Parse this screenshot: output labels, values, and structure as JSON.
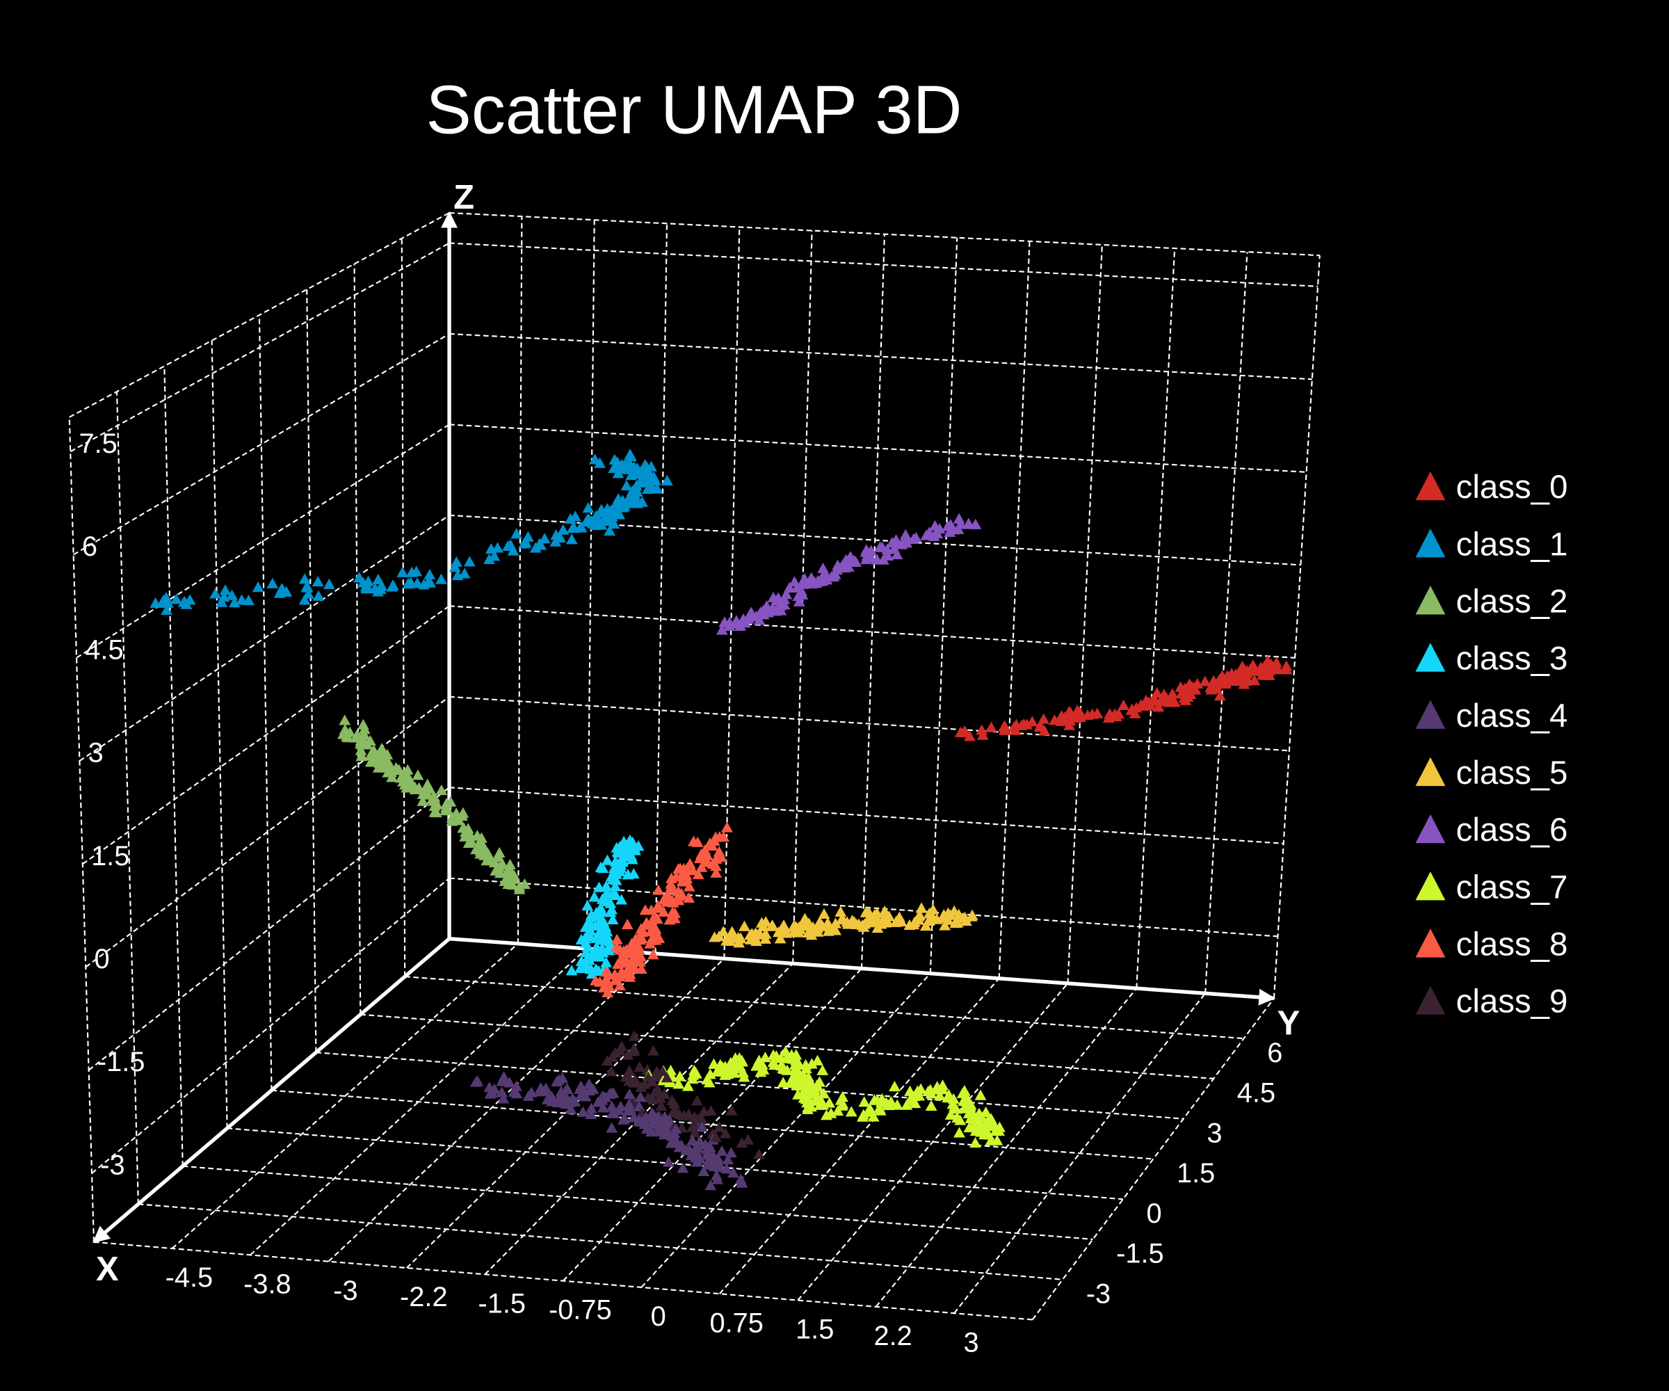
{
  "chart_data": {
    "type": "scatter",
    "dimensions": 3,
    "title": "Scatter UMAP 3D",
    "background": "#000000",
    "marker": "triangle",
    "grid": true,
    "legend_position": "right",
    "axes": {
      "x": {
        "label": "X",
        "lim": [
          -5.25,
          3.75
        ],
        "tick_values": [
          -4.5,
          -3.75,
          -3,
          -2.25,
          -1.5,
          -0.75,
          0,
          0.75,
          1.5,
          2.25,
          3
        ],
        "tick_labels": [
          "-4.5",
          "-3.8",
          "-3",
          "-2.2",
          "-1.5",
          "-0.75",
          "0",
          "0.75",
          "1.5",
          "2.2",
          "3"
        ]
      },
      "y": {
        "label": "Y",
        "lim": [
          -4.5,
          7.5
        ],
        "tick_values": [
          -3,
          -1.5,
          0,
          1.5,
          3,
          4.5,
          6
        ],
        "tick_labels": [
          "-3",
          "-1.5",
          "0",
          "1.5",
          "3",
          "4.5",
          "6"
        ]
      },
      "z": {
        "label": "Z",
        "lim": [
          -4,
          8
        ],
        "tick_values": [
          -3,
          -1.5,
          0,
          1.5,
          3,
          4.5,
          6,
          7.5
        ],
        "tick_labels": [
          "-3",
          "-1.5",
          "0",
          "1.5",
          "3",
          "4.5",
          "6",
          "7.5"
        ]
      }
    },
    "series": [
      {
        "name": "class_0",
        "color": "#d42b27",
        "count": 160,
        "spread": 0.2,
        "path": [
          [
            0.5,
            6.9,
            0.2
          ],
          [
            2.1,
            6.9,
            0.7
          ],
          [
            3.0,
            6.9,
            1.2
          ],
          [
            3.7,
            6.9,
            1.6
          ]
        ]
      },
      {
        "name": "class_1",
        "color": "#0092cc",
        "count": 200,
        "spread": 0.25,
        "path": [
          [
            -5.25,
            -2.1,
            4.6
          ],
          [
            -4.5,
            -0.5,
            4.4
          ],
          [
            -3.6,
            1.5,
            4.1
          ],
          [
            -2.8,
            4.0,
            4.2
          ],
          [
            -2.6,
            4.6,
            4.3
          ],
          [
            -2.5,
            5.4,
            4.6
          ],
          [
            -3.0,
            5.6,
            4.7
          ]
        ]
      },
      {
        "name": "class_2",
        "color": "#8aba62",
        "count": 140,
        "spread": 0.2,
        "path": [
          [
            -4.6,
            2.1,
            1.5
          ],
          [
            -4.2,
            2.1,
            0.9
          ],
          [
            -3.6,
            2.1,
            0.3
          ],
          [
            -2.9,
            2.1,
            -0.8
          ]
        ]
      },
      {
        "name": "class_3",
        "color": "#15d6f8",
        "count": 120,
        "spread": 0.22,
        "path": [
          [
            -2.0,
            1.5,
            -1.8
          ],
          [
            -1.9,
            1.5,
            -0.8
          ],
          [
            -1.7,
            1.8,
            0.2
          ]
        ]
      },
      {
        "name": "class_4",
        "color": "#553a72",
        "count": 160,
        "spread": 0.35,
        "path": [
          [
            -3.0,
            0.9,
            -3.4
          ],
          [
            -1.65,
            0.9,
            -3.5
          ],
          [
            -0.6,
            -0.3,
            -3.5
          ],
          [
            0.15,
            -1.5,
            -3.5
          ]
        ]
      },
      {
        "name": "class_5",
        "color": "#f0c63c",
        "count": 140,
        "spread": 0.22,
        "path": [
          [
            -1.3,
            3.9,
            -2.1
          ],
          [
            0.06,
            3.9,
            -1.7
          ],
          [
            1.23,
            3.9,
            -1.5
          ]
        ]
      },
      {
        "name": "class_6",
        "color": "#8754c2",
        "count": 130,
        "spread": 0.2,
        "path": [
          [
            -1.9,
            6.3,
            1.9
          ],
          [
            -0.75,
            6.3,
            3.0
          ],
          [
            0.5,
            6.3,
            3.8
          ]
        ]
      },
      {
        "name": "class_7",
        "color": "#cdf72c",
        "count": 220,
        "spread": 0.3,
        "path": [
          [
            -1.2,
            1.5,
            -3.4
          ],
          [
            -0.3,
            2.7,
            -3.4
          ],
          [
            0.6,
            0.9,
            -3.4
          ],
          [
            1.6,
            1.8,
            -3.3
          ],
          [
            2.4,
            0.3,
            -3.4
          ]
        ]
      },
      {
        "name": "class_8",
        "color": "#fb5a45",
        "count": 140,
        "spread": 0.25,
        "path": [
          [
            -1.75,
            1.2,
            -1.9
          ],
          [
            -1.45,
            1.2,
            -1.2
          ],
          [
            -0.65,
            1.2,
            0.55
          ]
        ]
      },
      {
        "name": "class_9",
        "color": "#3a2232",
        "count": 70,
        "spread": 0.4,
        "path": [
          [
            -2.1,
            2.7,
            -3.3
          ],
          [
            -1.2,
            1.0,
            -3.4
          ],
          [
            0.0,
            -0.5,
            -3.4
          ]
        ]
      }
    ]
  }
}
